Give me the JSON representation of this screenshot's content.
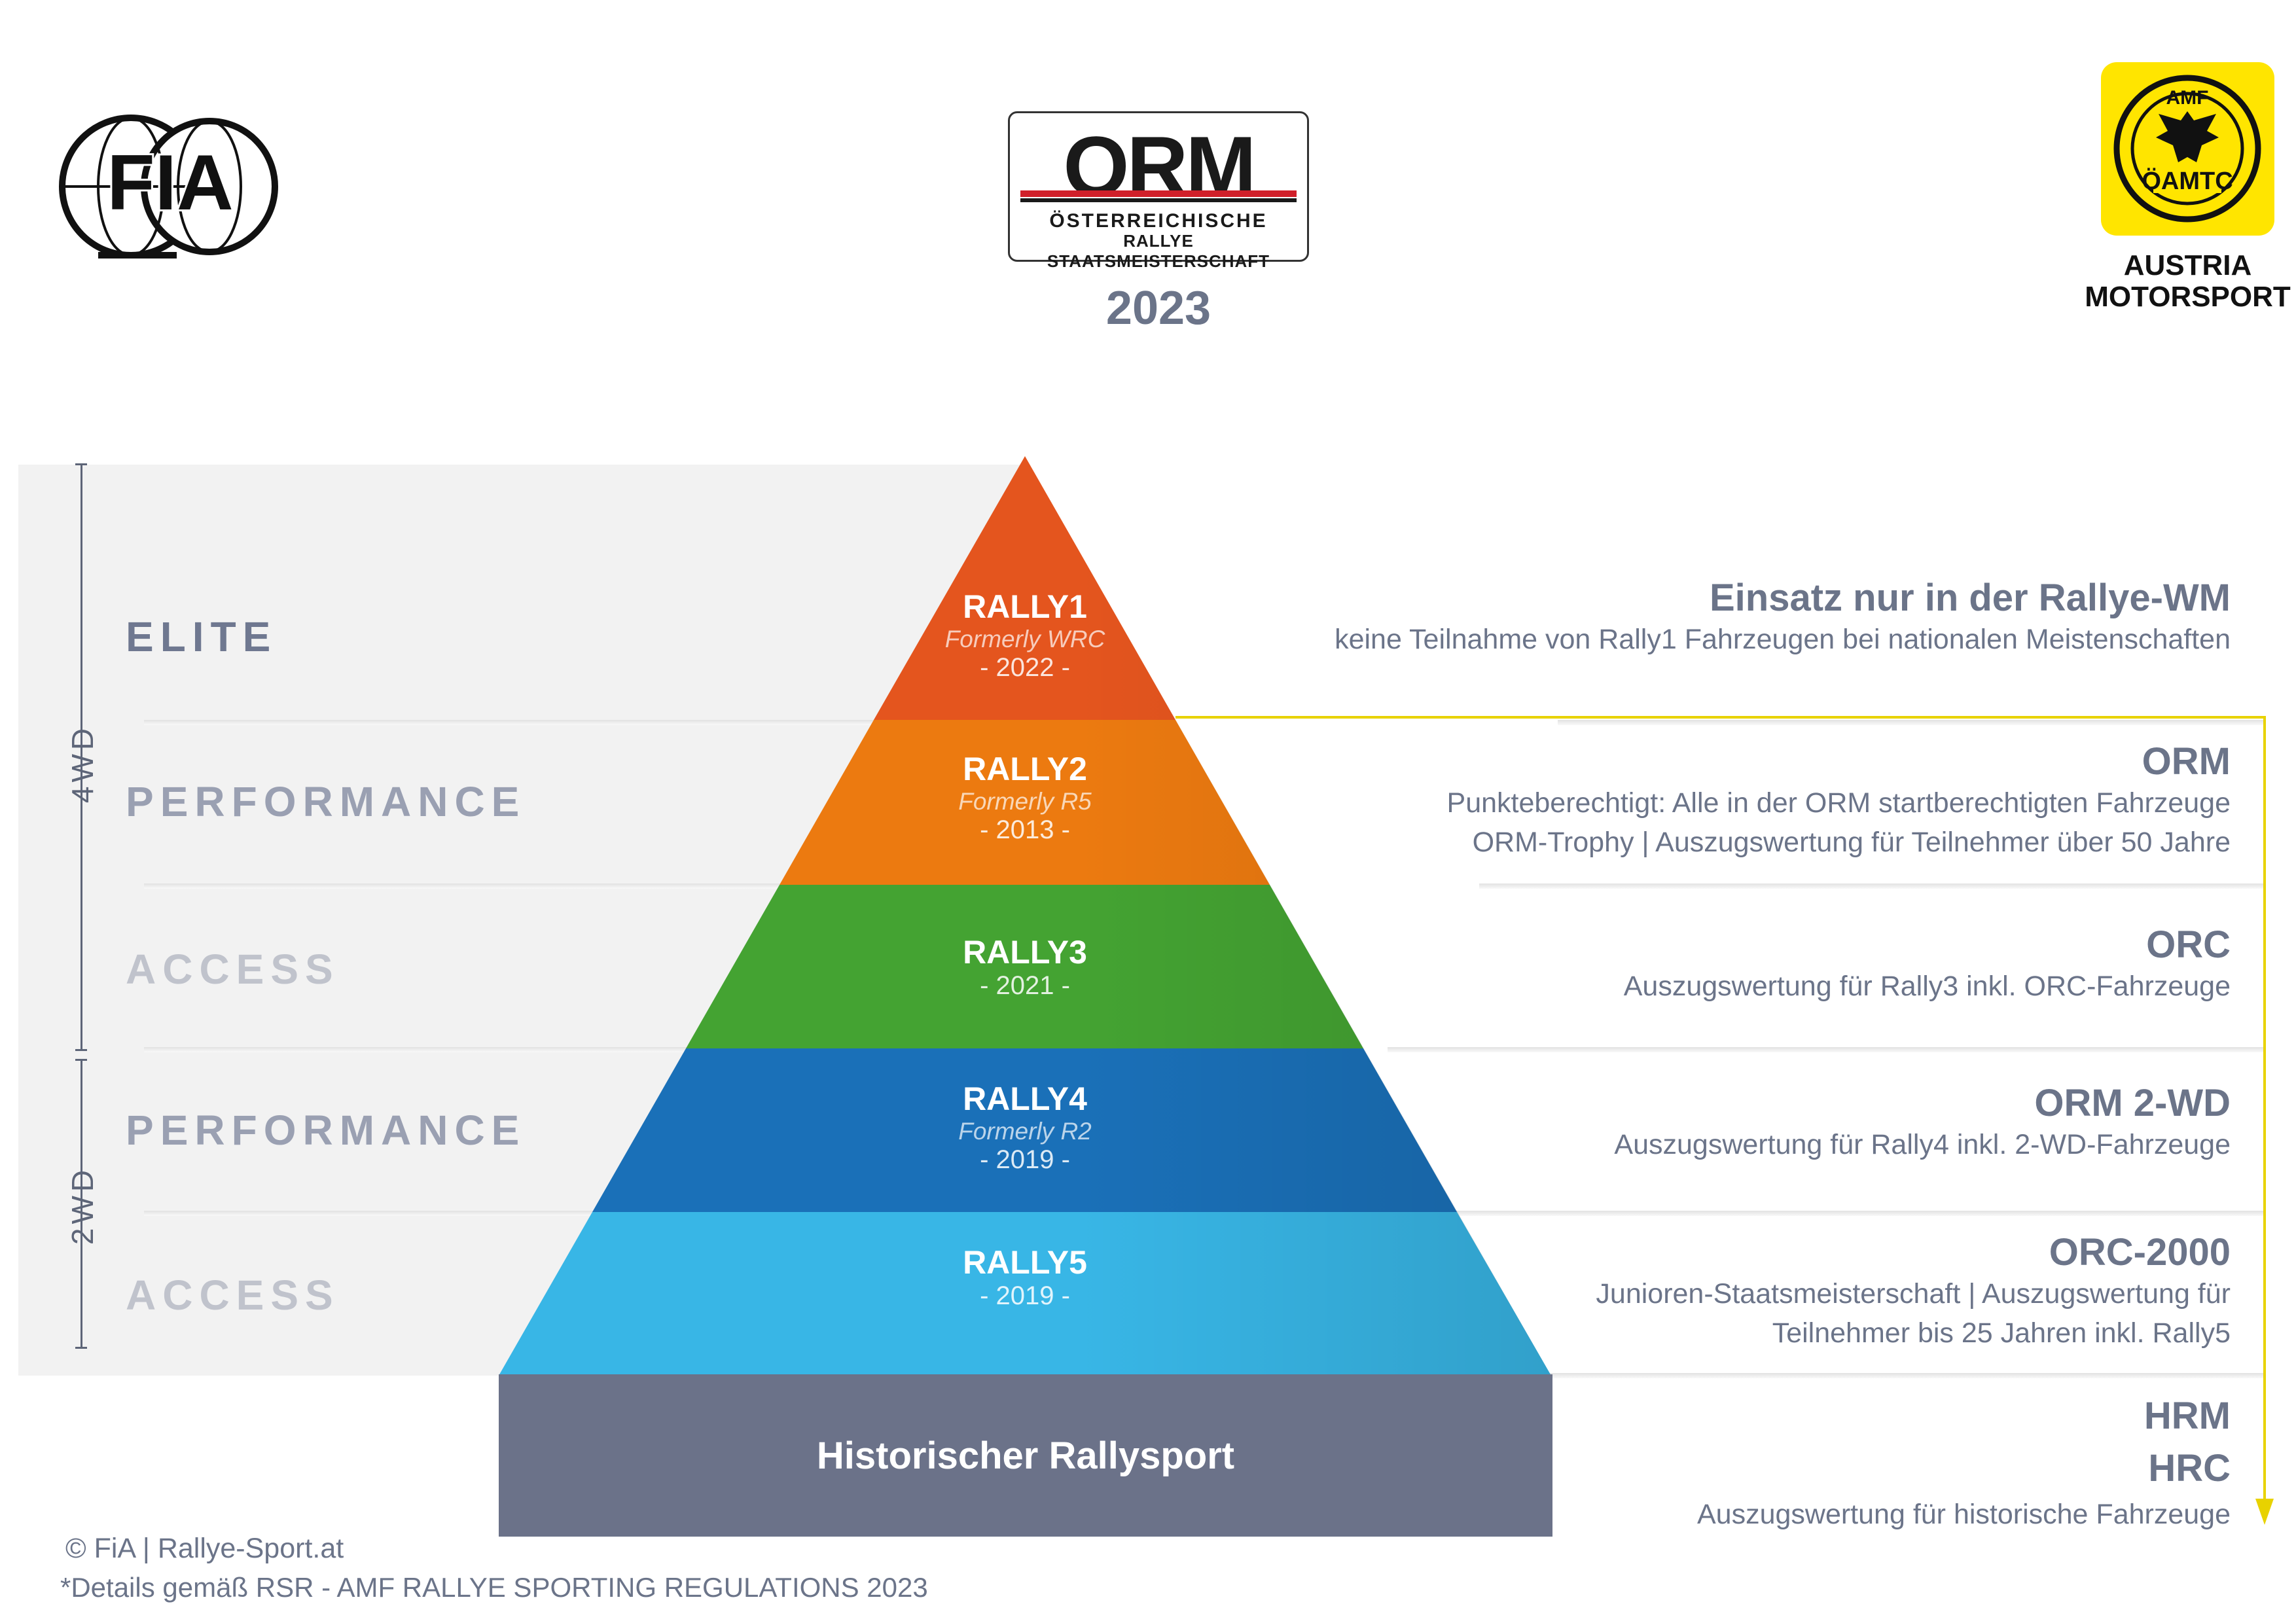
{
  "header": {
    "fia_logo_text": "FIA",
    "orm_logo": {
      "word": "ORM",
      "line1": "ÖSTERREICHISCHE",
      "line2": "RALLYE STAATSMEISTERSCHAFT"
    },
    "year": "2023",
    "amf_logo": {
      "top": "AMF",
      "bottom": "ÖAMTC"
    },
    "austria_motorsport_line1": "AUSTRIA",
    "austria_motorsport_line2": "MOTORSPORT"
  },
  "levels": [
    {
      "label": "ELITE"
    },
    {
      "label": "PERFORMANCE"
    },
    {
      "label": "ACCESS"
    },
    {
      "label": "PERFORMANCE"
    },
    {
      "label": "ACCESS"
    }
  ],
  "brackets": {
    "upper": "4WD",
    "lower": "2WD"
  },
  "pyramid": [
    {
      "title": "RALLY1",
      "formerly": "Formerly WRC",
      "year": "- 2022 -",
      "color": "#e4551e"
    },
    {
      "title": "RALLY2",
      "formerly": "Formerly R5",
      "year": "- 2013 -",
      "color": "#ec7a10"
    },
    {
      "title": "RALLY3",
      "formerly": "",
      "year": "- 2021 -",
      "color": "#44a332"
    },
    {
      "title": "RALLY4",
      "formerly": "Formerly R2",
      "year": "- 2019 -",
      "color": "#1a70b8"
    },
    {
      "title": "RALLY5",
      "formerly": "",
      "year": "- 2019 -",
      "color": "#38b6e6"
    }
  ],
  "historic_label": "Historischer Rallysport",
  "right": {
    "rally1": {
      "head": "Einsatz nur in der Rallye-WM",
      "sub": "keine Teilnahme von Rally1 Fahrzeugen bei nationalen Meistenschaften"
    },
    "rally2": {
      "head": "ORM",
      "sub1": "Punkteberechtigt: Alle in der ORM startberechtigten Fahrzeuge",
      "sub2": "ORM-Trophy | Auszugswertung für Teilnehmer über 50 Jahre"
    },
    "rally3": {
      "head": "ORC",
      "sub": "Auszugswertung für Rally3 inkl. ORC-Fahrzeuge"
    },
    "rally4": {
      "head": "ORM 2-WD",
      "sub": "Auszugswertung für Rally4 inkl. 2-WD-Fahrzeuge"
    },
    "rally5": {
      "head": "ORC-2000",
      "sub1": "Junioren-Staatsmeisterschaft | Auszugswertung für",
      "sub2": "Teilnehmer bis 25 Jahren inkl. Rally5"
    },
    "historic": {
      "head1": "HRM",
      "head2": "HRC",
      "sub": "Auszugswertung für historische Fahrzeuge"
    }
  },
  "colors": {
    "arrow": "#e8d200",
    "historic": "#6b7289",
    "text": "#6b7489"
  },
  "footer": {
    "copyright": "© FiA | Rallye-Sport.at",
    "details": "*Details gemäß  RSR - AMF RALLYE SPORTING REGULATIONS 2023"
  }
}
